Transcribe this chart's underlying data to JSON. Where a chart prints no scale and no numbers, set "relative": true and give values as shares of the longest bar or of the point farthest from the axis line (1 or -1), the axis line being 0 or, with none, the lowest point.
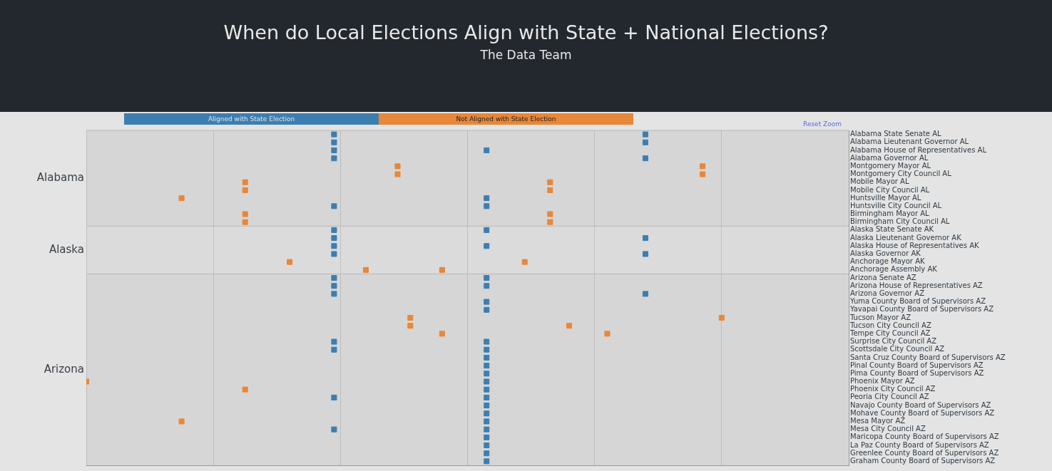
{
  "chart_data": {
    "type": "scatter",
    "title": "When do Local Elections Align with State + National Elections?",
    "subtitle": "The Data Team",
    "orientation": "horizontal",
    "relative": true,
    "marker": "square",
    "grid": "x",
    "legend": "top",
    "categories": [
      "Alabama State Senate AL",
      "Alabama Lieutenant Governor AL",
      "Alabama House of Representatives AL",
      "Alabama Governor AL",
      "Montgomery Mayor AL",
      "Montgomery City Council AL",
      "Mobile Mayor AL",
      "Mobile City Council AL",
      "Huntsville Mayor AL",
      "Huntsville City Council AL",
      "Birmingham Mayor AL",
      "Birmingham City Council AL",
      "Alaska State Senate AK",
      "Alaska Lieutenant Governor AK",
      "Alaska House of Representatives AK",
      "Alaska Governor AK",
      "Anchorage Mayor AK",
      "Anchorage Assembly AK",
      "Arizona Senate AZ",
      "Arizona House of Representatives AZ",
      "Arizona Governor AZ",
      "Yuma County Board of Supervisors AZ",
      "Yavapai County Board of Supervisors AZ",
      "Tucson Mayor AZ",
      "Tucson City Council AZ",
      "Tempe City Council AZ",
      "Surprise City Council AZ",
      "Scottsdale City Council AZ",
      "Santa Cruz County Board of Supervisors AZ",
      "Pinal County Board of Supervisors AZ",
      "Pima County Board of Supervisors AZ",
      "Phoenix Mayor AZ",
      "Phoenix City Council AZ",
      "Peoria City Council AZ",
      "Navajo County Board of Supervisors AZ",
      "Mohave County Board of Supervisors AZ",
      "Mesa Mayor AZ",
      "Mesa City Council AZ",
      "Maricopa County Board of Supervisors AZ",
      "La Paz County Board of Supervisors AZ",
      "Greenlee County Board of Supervisors AZ",
      "Graham County Board of Supervisors AZ"
    ],
    "series": [
      {
        "name": "Aligned with State Election",
        "color": "#3d7eb0",
        "values": [
          0.39,
          0.39,
          0.39,
          0.39,
          null,
          null,
          null,
          null,
          0.63,
          0.39,
          null,
          null,
          0.39,
          0.39,
          0.39,
          0.39,
          null,
          null,
          0.39,
          0.39,
          0.39,
          0.63,
          0.63,
          null,
          null,
          null,
          0.39,
          0.39,
          0.63,
          0.63,
          0.63,
          0.63,
          0.63,
          0.39,
          0.63,
          0.63,
          0.63,
          0.39,
          0.63,
          0.63,
          0.63,
          0.63
        ]
      },
      {
        "color": "#3d7eb0",
        "values": [
          0.88,
          0.88,
          0.63,
          0.88,
          null,
          null,
          null,
          null,
          null,
          0.63,
          null,
          null,
          0.63,
          0.88,
          0.63,
          0.88,
          null,
          null,
          0.63,
          0.63,
          0.88,
          null,
          null,
          null,
          null,
          null,
          0.63,
          0.63,
          null,
          null,
          null,
          null,
          null,
          0.63,
          null,
          null,
          null,
          0.63,
          null,
          null,
          null,
          null
        ]
      },
      {
        "name": "Not Aligned with State Election",
        "color": "#e8873a",
        "values": [
          null,
          null,
          null,
          null,
          0.49,
          0.49,
          0.25,
          0.25,
          0.15,
          null,
          0.25,
          0.25,
          null,
          null,
          null,
          null,
          0.32,
          0.44,
          null,
          null,
          null,
          null,
          null,
          0.51,
          0.51,
          0.56,
          null,
          null,
          null,
          null,
          null,
          0,
          0.25,
          null,
          null,
          null,
          0.15,
          null,
          null,
          null,
          null,
          null
        ]
      },
      {
        "color": "#e8873a",
        "values": [
          null,
          null,
          null,
          null,
          0.97,
          0.97,
          0.73,
          0.73,
          null,
          null,
          0.73,
          0.73,
          null,
          null,
          null,
          null,
          0.69,
          0.56,
          null,
          null,
          null,
          null,
          null,
          1.0,
          0.76,
          0.82,
          null,
          null,
          null,
          null,
          null,
          null,
          null,
          null,
          null,
          null,
          null,
          null,
          null,
          null,
          null,
          null
        ]
      }
    ],
    "bands": [
      {
        "axis": "y",
        "from": "Alabama State Senate AL",
        "to": "Birmingham City Council AL",
        "label": "Alabama"
      },
      {
        "axis": "y",
        "from": "Alaska State Senate AK",
        "to": "Anchorage Assembly AK",
        "label": "Alaska"
      },
      {
        "axis": "y",
        "from": "Arizona Senate AZ",
        "to": "Graham County Board of Supervisors AZ",
        "label": "Arizona"
      }
    ],
    "annotations": [
      "Reset Zoom"
    ]
  }
}
